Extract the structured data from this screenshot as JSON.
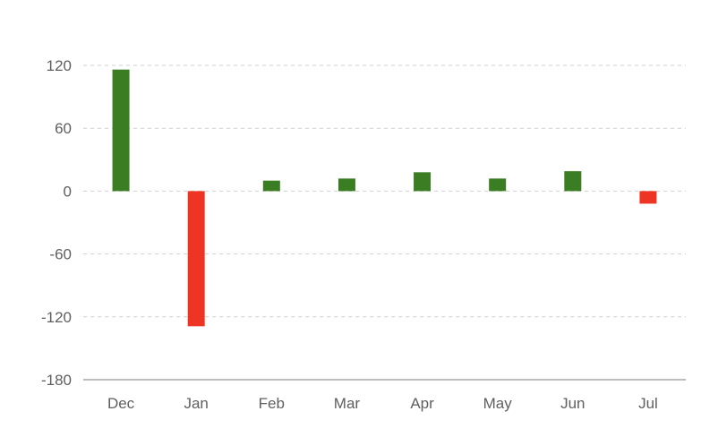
{
  "chart_data": {
    "type": "bar",
    "categories": [
      "Dec",
      "Jan",
      "Feb",
      "Mar",
      "Apr",
      "May",
      "Jun",
      "Jul"
    ],
    "values": [
      116,
      -129,
      10,
      12,
      18,
      12,
      19,
      -12
    ],
    "ylim": [
      -180,
      120
    ],
    "yticks": [
      {
        "value": 120,
        "label": "120"
      },
      {
        "value": 60,
        "label": "60"
      },
      {
        "value": 0,
        "label": "0"
      },
      {
        "value": -60,
        "label": "-60"
      },
      {
        "value": -120,
        "label": "-120"
      },
      {
        "value": -180,
        "label": "-180"
      }
    ],
    "grid": true,
    "colors": {
      "positive": "#3a7d22",
      "negative": "#ee3524"
    }
  }
}
